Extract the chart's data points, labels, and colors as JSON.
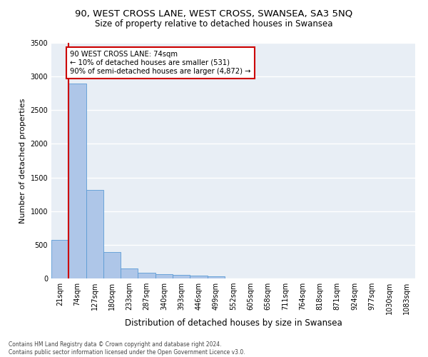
{
  "title1": "90, WEST CROSS LANE, WEST CROSS, SWANSEA, SA3 5NQ",
  "title2": "Size of property relative to detached houses in Swansea",
  "xlabel": "Distribution of detached houses by size in Swansea",
  "ylabel": "Number of detached properties",
  "footer": "Contains HM Land Registry data © Crown copyright and database right 2024.\nContains public sector information licensed under the Open Government Licence v3.0.",
  "categories": [
    "21sqm",
    "74sqm",
    "127sqm",
    "180sqm",
    "233sqm",
    "287sqm",
    "340sqm",
    "393sqm",
    "446sqm",
    "499sqm",
    "552sqm",
    "605sqm",
    "658sqm",
    "711sqm",
    "764sqm",
    "818sqm",
    "871sqm",
    "924sqm",
    "977sqm",
    "1030sqm",
    "1083sqm"
  ],
  "values": [
    570,
    2900,
    1320,
    395,
    150,
    85,
    60,
    55,
    45,
    35,
    0,
    0,
    0,
    0,
    0,
    0,
    0,
    0,
    0,
    0,
    0
  ],
  "bar_color": "#aec6e8",
  "bar_edge_color": "#5b9bd5",
  "highlight_label": "90 WEST CROSS LANE: 74sqm",
  "annotation_line1": "← 10% of detached houses are smaller (531)",
  "annotation_line2": "90% of semi-detached houses are larger (4,872) →",
  "vline_color": "#cc0000",
  "annotation_box_color": "#cc0000",
  "ylim": [
    0,
    3500
  ],
  "yticks": [
    0,
    500,
    1000,
    1500,
    2000,
    2500,
    3000,
    3500
  ],
  "background_color": "#e8eef5",
  "grid_color": "#ffffff",
  "title1_fontsize": 9.5,
  "title2_fontsize": 8.5,
  "xlabel_fontsize": 8.5,
  "ylabel_fontsize": 8,
  "tick_fontsize": 7,
  "footer_fontsize": 5.5
}
